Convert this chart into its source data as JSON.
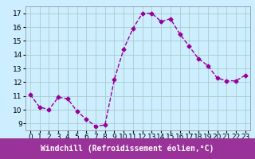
{
  "hours": [
    0,
    1,
    2,
    3,
    4,
    5,
    6,
    7,
    8,
    9,
    10,
    11,
    12,
    13,
    14,
    15,
    16,
    17,
    18,
    19,
    20,
    21,
    22,
    23
  ],
  "values": [
    11.1,
    10.2,
    10.0,
    10.9,
    10.8,
    9.9,
    9.3,
    8.8,
    8.9,
    12.2,
    14.4,
    15.9,
    17.0,
    17.0,
    16.4,
    16.6,
    15.5,
    14.6,
    13.7,
    13.2,
    12.3,
    12.1,
    12.1,
    12.5
  ],
  "line_color": "#990099",
  "marker": "D",
  "marker_size": 2.5,
  "line_width": 1.0,
  "bg_color": "#cceeff",
  "grid_color": "#aacccc",
  "xlabel": "Windchill (Refroidissement éolien,°C)",
  "xlabel_bg": "#993399",
  "xlabel_color": "#ffffff",
  "xlabel_fontsize": 7,
  "tick_fontsize": 6.5,
  "ylim": [
    8.5,
    17.5
  ],
  "yticks": [
    9,
    10,
    11,
    12,
    13,
    14,
    15,
    16,
    17
  ],
  "xlim": [
    -0.5,
    23.5
  ],
  "xticks": [
    0,
    1,
    2,
    3,
    4,
    5,
    6,
    7,
    8,
    9,
    10,
    11,
    12,
    13,
    14,
    15,
    16,
    17,
    18,
    19,
    20,
    21,
    22,
    23
  ]
}
